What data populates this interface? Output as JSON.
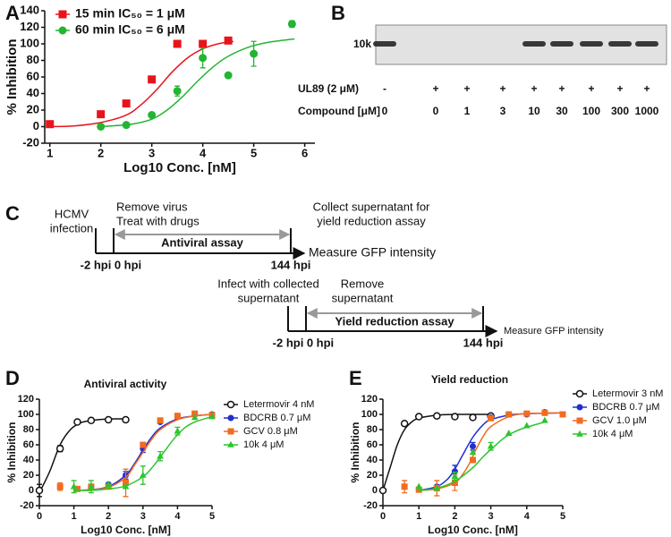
{
  "chart_data": [
    {
      "type": "scatter",
      "panel": "A",
      "xlabel": "Log10 Conc. [nM]",
      "ylabel": "% Inhibition",
      "xlim": [
        0.9,
        6.2
      ],
      "xticks": [
        1,
        2,
        3,
        4,
        5,
        6
      ],
      "ylim": [
        -20,
        140
      ],
      "yticks": [
        -20,
        0,
        20,
        40,
        60,
        80,
        100,
        120,
        140
      ],
      "series": [
        {
          "name": "15 min IC₅₀ = 1 μM",
          "color": "#e8141b",
          "marker": "square",
          "x": [
            1.0,
            2.0,
            2.5,
            3.0,
            3.5,
            4.0,
            4.5
          ],
          "values": [
            3,
            15,
            28,
            57,
            100,
            100,
            104
          ],
          "fit_x": [
            1.0,
            1.5,
            2.0,
            2.5,
            2.8,
            3.1,
            3.4,
            3.7,
            4.0,
            4.3,
            4.6
          ],
          "fit": [
            0,
            1,
            5,
            14,
            27,
            45,
            66,
            83,
            94,
            100,
            103
          ]
        },
        {
          "name": "60 min IC₅₀ = 6 μM",
          "color": "#22b532",
          "marker": "circle",
          "x": [
            2.0,
            2.5,
            3.0,
            3.5,
            4.0,
            4.5,
            5.0,
            5.75
          ],
          "values": [
            0,
            2,
            14,
            43,
            83,
            62,
            88,
            124
          ],
          "errors": [
            null,
            null,
            2,
            6,
            12,
            null,
            15,
            4
          ],
          "fit_x": [
            2.0,
            2.6,
            3.0,
            3.3,
            3.6,
            3.9,
            4.2,
            4.5,
            4.9,
            5.3,
            5.8
          ],
          "fit": [
            0,
            3,
            9,
            20,
            36,
            55,
            72,
            85,
            96,
            102,
            106
          ]
        }
      ]
    },
    {
      "type": "scatter",
      "panel": "D",
      "title": "Antiviral activity",
      "xlabel": "Log10 Conc. [nM]",
      "ylabel": "% Inhibition",
      "xlim": [
        0,
        5
      ],
      "xticks": [
        0,
        1,
        2,
        3,
        4,
        5
      ],
      "ylim": [
        -20,
        120
      ],
      "yticks": [
        -20,
        0,
        20,
        40,
        60,
        80,
        100,
        120
      ],
      "series": [
        {
          "name": "Letermovir 4 nM",
          "color": "#111111",
          "marker": "circle-open",
          "x": [
            0,
            0.6,
            1.1,
            1.5,
            2.0,
            2.5
          ],
          "values": [
            0,
            55,
            90,
            92,
            93,
            93
          ],
          "errors": [
            8,
            4,
            null,
            null,
            null,
            null
          ],
          "fit_x": [
            0,
            0.3,
            0.6,
            0.9,
            1.2,
            1.5,
            2.0,
            2.5
          ],
          "fit": [
            -3,
            25,
            60,
            80,
            89,
            92,
            94,
            94
          ]
        },
        {
          "name": "BDCRB 0.7 μM",
          "color": "#1f2fd0",
          "marker": "circle",
          "x": [
            1.5,
            2.0,
            2.5,
            3.0,
            3.5,
            4.0,
            4.5,
            5.0
          ],
          "values": [
            5,
            8,
            20,
            55,
            90,
            98,
            100,
            100
          ],
          "errors": [
            null,
            null,
            5,
            5,
            null,
            null,
            null,
            null
          ],
          "fit_x": [
            1.0,
            1.5,
            2.0,
            2.5,
            2.75,
            3.0,
            3.25,
            3.5,
            4.0,
            4.5,
            5.0
          ],
          "fit": [
            0,
            1,
            5,
            20,
            35,
            53,
            70,
            82,
            94,
            98,
            100
          ]
        },
        {
          "name": "GCV 0.8 μM",
          "color": "#f26b21",
          "marker": "square",
          "x": [
            0.6,
            1.1,
            1.5,
            2.0,
            2.5,
            3.0,
            3.5,
            4.0,
            4.5,
            5.0
          ],
          "values": [
            5,
            2,
            5,
            5,
            10,
            60,
            92,
            98,
            101,
            99
          ],
          "errors": [
            5,
            null,
            null,
            null,
            18,
            null,
            null,
            null,
            null,
            null
          ],
          "fit_x": [
            1.0,
            1.5,
            2.0,
            2.5,
            2.75,
            3.0,
            3.25,
            3.5,
            4.0,
            4.5,
            5.0
          ],
          "fit": [
            0,
            1,
            4,
            17,
            33,
            50,
            67,
            80,
            93,
            98,
            100
          ]
        },
        {
          "name": "10k 4 μM",
          "color": "#2ec52e",
          "marker": "triangle",
          "x": [
            1.0,
            1.5,
            2.0,
            2.5,
            3.0,
            3.5,
            4.0,
            4.5,
            5.0
          ],
          "values": [
            5,
            5,
            8,
            5,
            20,
            45,
            78,
            96,
            97
          ],
          "errors": [
            8,
            8,
            null,
            null,
            12,
            6,
            5,
            null,
            null
          ],
          "fit_x": [
            1.0,
            1.5,
            2.0,
            2.5,
            3.0,
            3.3,
            3.6,
            3.9,
            4.2,
            4.5,
            5.0
          ],
          "fit": [
            0,
            0,
            2,
            6,
            18,
            32,
            50,
            68,
            82,
            90,
            97
          ]
        }
      ]
    },
    {
      "type": "scatter",
      "panel": "E",
      "title": "Yield reduction",
      "xlabel": "Log10 Conc. [nM]",
      "ylabel": "% Inhibition",
      "xlim": [
        0,
        5
      ],
      "xticks": [
        0,
        1,
        2,
        3,
        4,
        5
      ],
      "ylim": [
        -20,
        120
      ],
      "yticks": [
        -20,
        0,
        20,
        40,
        60,
        80,
        100,
        120
      ],
      "series": [
        {
          "name": "Letermovir 3 nM",
          "color": "#111111",
          "marker": "circle-open",
          "x": [
            0,
            0.6,
            1.0,
            1.5,
            2.0,
            2.5,
            3.0
          ],
          "values": [
            0,
            88,
            97,
            98,
            97,
            96,
            98
          ],
          "fit_x": [
            0,
            0.2,
            0.4,
            0.6,
            0.8,
            1.0,
            1.5,
            2.0,
            2.5,
            3.0
          ],
          "fit": [
            0,
            30,
            60,
            80,
            90,
            95,
            99,
            100,
            100,
            100
          ]
        },
        {
          "name": "BDCRB 0.7 μM",
          "color": "#1f2fd0",
          "marker": "circle",
          "x": [
            1.5,
            2.0,
            2.5,
            3.0,
            3.5,
            4.0,
            4.5,
            5.0
          ],
          "values": [
            5,
            25,
            58,
            96,
            100,
            100,
            103,
            100
          ],
          "errors": [
            null,
            8,
            5,
            null,
            null,
            null,
            null,
            null
          ],
          "fit_x": [
            1.0,
            1.5,
            1.8,
            2.0,
            2.2,
            2.5,
            2.8,
            3.0,
            3.5,
            4.0,
            5.0
          ],
          "fit": [
            0,
            5,
            15,
            28,
            45,
            70,
            87,
            93,
            99,
            101,
            102
          ]
        },
        {
          "name": "GCV 1.0 μM",
          "color": "#f26b21",
          "marker": "square",
          "x": [
            0.6,
            1.0,
            1.5,
            2.0,
            2.5,
            3.0,
            3.5,
            4.0,
            4.5,
            5.0
          ],
          "values": [
            5,
            1,
            3,
            10,
            40,
            95,
            100,
            101,
            102,
            100
          ],
          "errors": [
            8,
            null,
            10,
            10,
            null,
            null,
            null,
            null,
            null,
            null
          ],
          "fit_x": [
            1.0,
            1.5,
            2.0,
            2.2,
            2.4,
            2.6,
            2.8,
            3.0,
            3.5,
            4.0,
            5.0
          ],
          "fit": [
            0,
            2,
            10,
            20,
            35,
            55,
            72,
            84,
            97,
            101,
            102
          ]
        },
        {
          "name": "10k 4 μM",
          "color": "#2ec52e",
          "marker": "triangle",
          "x": [
            1.0,
            1.5,
            2.0,
            2.5,
            3.0,
            3.5,
            4.0,
            4.5
          ],
          "values": [
            5,
            3,
            18,
            50,
            58,
            75,
            85,
            92
          ],
          "errors": [
            null,
            null,
            6,
            null,
            5,
            null,
            null,
            null
          ],
          "fit_x": [
            1.0,
            1.5,
            2.0,
            2.5,
            2.8,
            3.1,
            3.4,
            3.8,
            4.5
          ],
          "fit": [
            0,
            3,
            12,
            30,
            45,
            58,
            70,
            80,
            90
          ]
        }
      ]
    }
  ],
  "gel": {
    "panel": "B",
    "band_label": "10k",
    "rows": [
      {
        "label": "UL89 (2 μM)",
        "values": [
          "-",
          "+",
          "+",
          "+",
          "+",
          "+",
          "+",
          "+",
          "+"
        ]
      },
      {
        "label": "Compound [μM]",
        "values": [
          "0",
          "0",
          "1",
          "3",
          "10",
          "30",
          "100",
          "300",
          "1000"
        ]
      }
    ],
    "bands": [
      true,
      false,
      false,
      false,
      true,
      true,
      true,
      true,
      true
    ]
  },
  "timeline": {
    "panel": "C",
    "top": {
      "start_label": [
        "HCMV",
        "infection"
      ],
      "step_label": [
        "Remove virus",
        "Treat with drugs"
      ],
      "end_label": [
        "Collect supernatant for",
        "yield reduction assay"
      ],
      "assay": "Antiviral assay",
      "readout": "Measure GFP intensity",
      "times": [
        "-2 hpi",
        "0 hpi",
        "144 hpi"
      ]
    },
    "bottom": {
      "start_label": [
        "Infect with collected",
        "supernatant"
      ],
      "step_label": [
        "Remove",
        "supernatant"
      ],
      "assay": "Yield reduction assay",
      "readout": "Measure GFP intensity",
      "times": [
        "-2 hpi",
        "0 hpi",
        "144 hpi"
      ]
    }
  }
}
